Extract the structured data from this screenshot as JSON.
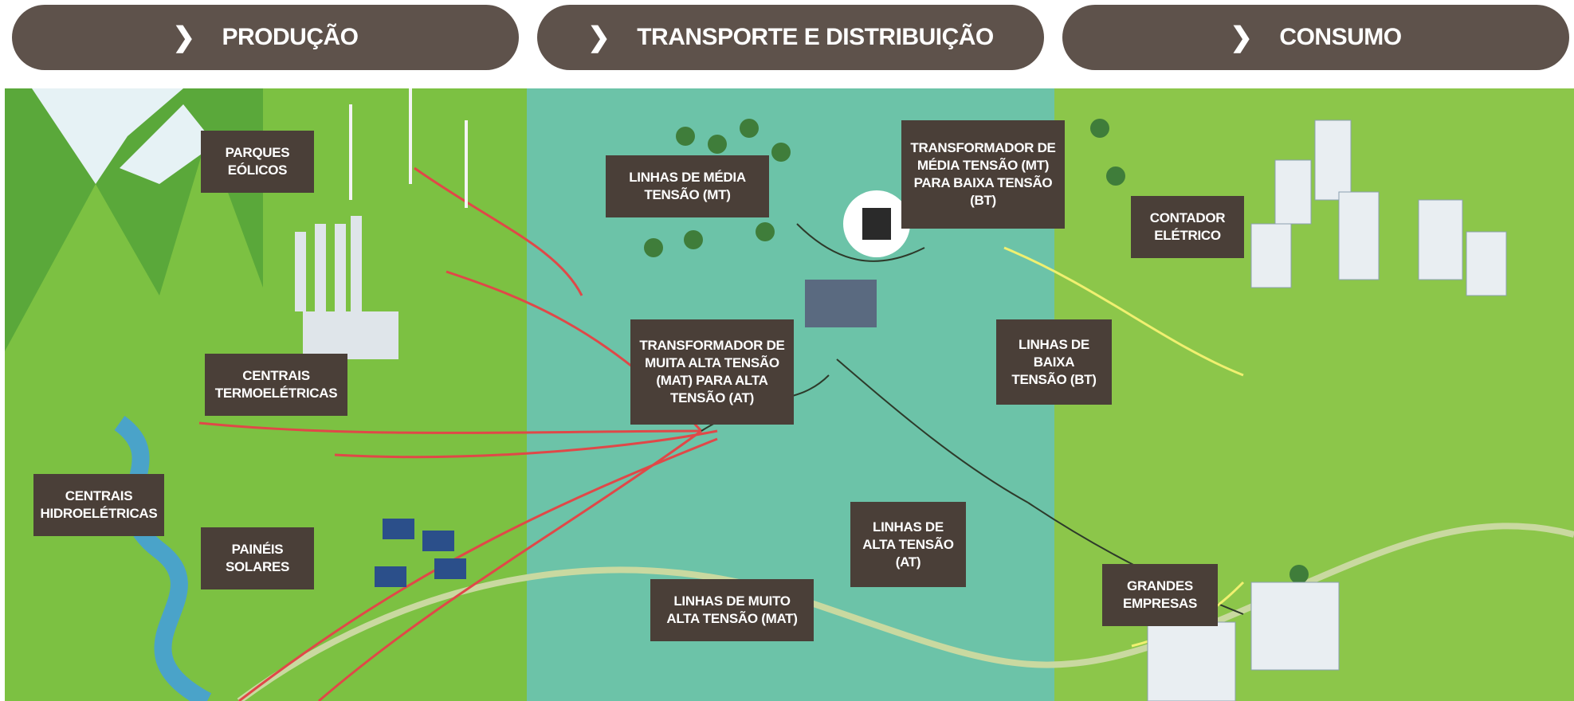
{
  "tabs": [
    {
      "label": "PRODUÇÃO"
    },
    {
      "label": "TRANSPORTE E DISTRIBUIÇÃO"
    },
    {
      "label": "CONSUMO"
    }
  ],
  "labels": [
    {
      "lines": [
        "PARQUES",
        "EÓLICOS"
      ]
    },
    {
      "lines": [
        "CENTRAIS",
        "TERMOELÉTRICAS"
      ]
    },
    {
      "lines": [
        "CENTRAIS",
        "HIDROELÉTRICAS"
      ]
    },
    {
      "lines": [
        "PAINÉIS",
        "SOLARES"
      ]
    },
    {
      "lines": [
        "LINHAS DE MÉDIA",
        "TENSÃO (MT)"
      ]
    },
    {
      "lines": [
        "TRANSFORMADOR DE",
        "MUITA ALTA TENSÃO",
        "(MAT) PARA ALTA",
        "TENSÃO (AT)"
      ]
    },
    {
      "lines": [
        "TRANSFORMADOR DE",
        "MÉDIA TENSÃO (MT)",
        "PARA BAIXA TENSÃO",
        "(BT)"
      ]
    },
    {
      "lines": [
        "LINHAS DE MUITO",
        "ALTA TENSÃO (MAT)"
      ]
    },
    {
      "lines": [
        "LINHAS DE",
        "ALTA TENSÃO",
        "(AT)"
      ]
    },
    {
      "lines": [
        "LINHAS DE",
        "BAIXA",
        "TENSÃO (BT)"
      ]
    },
    {
      "lines": [
        "CONTADOR",
        "ELÉTRICO"
      ]
    },
    {
      "lines": [
        "GRANDES",
        "EMPRESAS"
      ]
    }
  ]
}
